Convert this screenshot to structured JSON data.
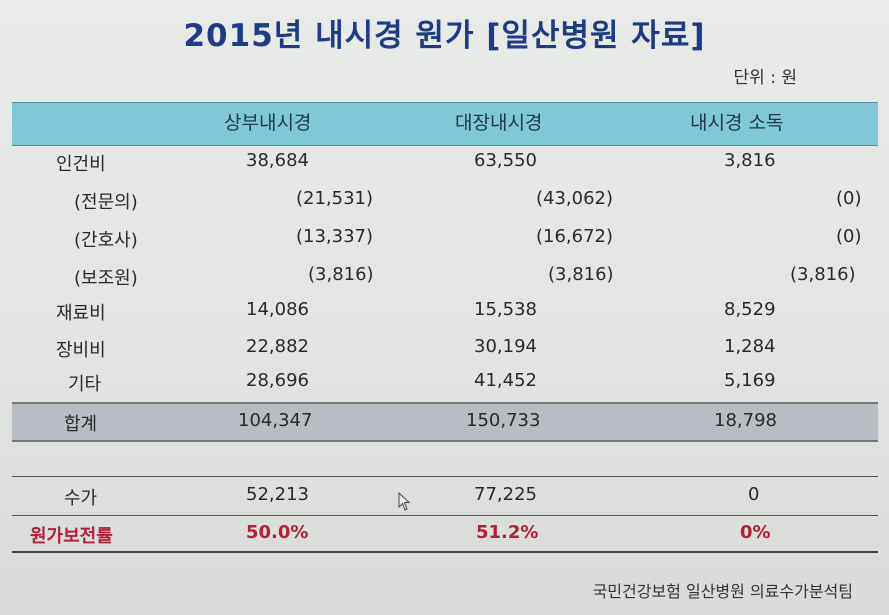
{
  "title": "2015년 내시경 원가 [일산병원 자료]",
  "unit": "단위 : 원",
  "columns": [
    "상부내시경",
    "대장내시경",
    "내시경 소독"
  ],
  "rows": [
    {
      "label": "인건비",
      "values": [
        "38,684",
        "63,550",
        "3,816"
      ]
    },
    {
      "label": "(전문의)",
      "values": [
        "(21,531)",
        "(43,062)",
        "(0)"
      ]
    },
    {
      "label": "(간호사)",
      "values": [
        "(13,337)",
        "(16,672)",
        "(0)"
      ]
    },
    {
      "label": "(보조원)",
      "values": [
        "(3,816)",
        "(3,816)",
        "(3,816)"
      ]
    },
    {
      "label": "재료비",
      "values": [
        "14,086",
        "15,538",
        "8,529"
      ]
    },
    {
      "label": "장비비",
      "values": [
        "22,882",
        "30,194",
        "1,284"
      ]
    },
    {
      "label": "기타",
      "values": [
        "28,696",
        "41,452",
        "5,169"
      ]
    }
  ],
  "total": {
    "label": "합계",
    "values": [
      "104,347",
      "150,733",
      "18,798"
    ]
  },
  "fee": {
    "label": "수가",
    "values": [
      "52,213",
      "77,225",
      "0"
    ]
  },
  "ratio": {
    "label": "원가보전률",
    "values": [
      "50.0%",
      "51.2%",
      "0%"
    ]
  },
  "footer": "국민건강보험 일산병원 의료수가분석팀",
  "colors": {
    "title": "#1f3b86",
    "header_bg": "#7fc8d6",
    "total_bg": "#b9bcc2",
    "ratio": "#b32035"
  }
}
